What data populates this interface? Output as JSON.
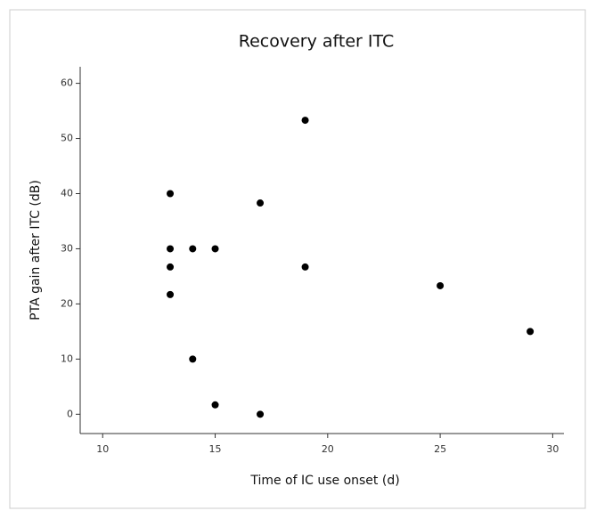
{
  "chart_data": {
    "type": "scatter",
    "title": "Recovery after ITC",
    "x_label": "Time of IC use onset (d)",
    "y_label": "PTA gain after ITC (dB)",
    "series": [
      {
        "name": null,
        "color": "#000000",
        "x": [
          13,
          13,
          13,
          13,
          14,
          14,
          15,
          15,
          17,
          17,
          19,
          19,
          25,
          29
        ],
        "values": [
          40,
          30,
          26.7,
          21.7,
          30,
          10,
          30,
          1.7,
          38.3,
          0,
          53.3,
          26.7,
          23.3,
          15
        ]
      }
    ],
    "xlim": [
      9,
      30.5
    ],
    "xticks": [
      10,
      15,
      20,
      25,
      30
    ],
    "ylim": [
      -3.5,
      63
    ],
    "yticks": [
      0,
      10,
      20,
      30,
      40,
      50,
      60
    ]
  }
}
